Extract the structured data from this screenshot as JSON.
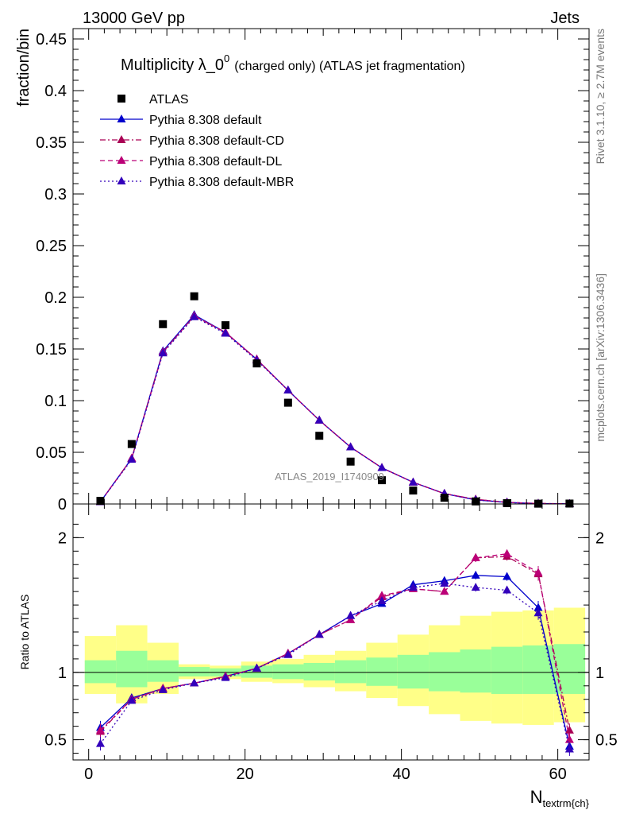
{
  "header": {
    "energy_label": "13000 GeV pp",
    "category_label": "Jets"
  },
  "side_labels": {
    "rivet": "Rivet 3.1.10, ≥ 2.7M events",
    "mcplots": "mcplots.cern.ch [arXiv:1306.3436]"
  },
  "colors": {
    "data": "#000000",
    "default": "#0000cc",
    "default_cd": "#aa0055",
    "default_dl": "#bb0077",
    "default_mbr": "#3300bb",
    "band_inner": "#99ff99",
    "band_outer": "#ffff88"
  },
  "chart_data": [
    {
      "type": "scatter",
      "title": "Multiplicity λ_0",
      "title_sup": "0",
      "title_suffix": "(charged only) (ATLAS jet fragmentation)",
      "ylabel": "fraction/bin",
      "xlabel": "",
      "watermark": "ATLAS_2019_I1740909",
      "xlim": [
        -2,
        64
      ],
      "ylim": [
        0,
        0.46
      ],
      "yticks": [
        0,
        0.05,
        0.1,
        0.15,
        0.2,
        0.25,
        0.3,
        0.35,
        0.4,
        0.45
      ],
      "ytick_labels": [
        "0",
        "0.05",
        "0.1",
        "0.15",
        "0.2",
        "0.25",
        "0.3",
        "0.35",
        "0.4",
        "0.45"
      ],
      "legend_position": "top-left",
      "x": [
        1.5,
        5.5,
        9.5,
        13.5,
        17.5,
        21.5,
        25.5,
        29.5,
        33.5,
        37.5,
        41.5,
        45.5,
        49.5,
        53.5,
        57.5,
        61.5
      ],
      "series": [
        {
          "name": "ATLAS",
          "marker": "square",
          "values": [
            0.003,
            0.058,
            0.174,
            0.201,
            0.173,
            0.136,
            0.098,
            0.066,
            0.041,
            0.023,
            0.013,
            0.006,
            0.0025,
            0.0008,
            0.0003,
            0.0004
          ]
        },
        {
          "name": "Pythia 8.308 default",
          "marker": "triangle",
          "line": "solid",
          "values": [
            0.002,
            0.044,
            0.148,
            0.183,
            0.166,
            0.14,
            0.11,
            0.081,
            0.055,
            0.035,
            0.021,
            0.01,
            0.004,
            0.0015,
            0.0004,
            0.0002
          ]
        },
        {
          "name": "Pythia 8.308 default-CD",
          "marker": "triangle",
          "line": "dashdot",
          "values": [
            0.002,
            0.044,
            0.147,
            0.182,
            0.166,
            0.14,
            0.11,
            0.081,
            0.055,
            0.035,
            0.021,
            0.01,
            0.0045,
            0.0016,
            0.0005,
            0.0002
          ]
        },
        {
          "name": "Pythia 8.308 default-DL",
          "marker": "triangle",
          "line": "dashed",
          "values": [
            0.002,
            0.044,
            0.147,
            0.182,
            0.166,
            0.14,
            0.11,
            0.081,
            0.055,
            0.035,
            0.021,
            0.01,
            0.0045,
            0.0016,
            0.0005,
            0.0002
          ]
        },
        {
          "name": "Pythia 8.308 default-MBR",
          "marker": "triangle",
          "line": "dotted",
          "values": [
            0.002,
            0.043,
            0.146,
            0.181,
            0.165,
            0.139,
            0.11,
            0.081,
            0.055,
            0.035,
            0.021,
            0.01,
            0.004,
            0.0014,
            0.0004,
            0.0002
          ]
        }
      ]
    },
    {
      "type": "scatter",
      "title": "",
      "ylabel": "Ratio to ATLAS",
      "xlabel": "N",
      "xlabel_sub": "textrm{ch}",
      "xlim": [
        -2,
        64
      ],
      "ylim": [
        0.35,
        2.25
      ],
      "xticks": [
        0,
        20,
        40,
        60
      ],
      "xtick_labels": [
        "0",
        "20",
        "40",
        "60"
      ],
      "yticks": [
        0.5,
        1,
        2
      ],
      "ytick_labels": [
        "0.5",
        "1",
        "2"
      ],
      "reference_line": 1,
      "bins": [
        [
          -0.5,
          3.5
        ],
        [
          3.5,
          7.5
        ],
        [
          7.5,
          11.5
        ],
        [
          11.5,
          15.5
        ],
        [
          15.5,
          19.5
        ],
        [
          19.5,
          23.5
        ],
        [
          23.5,
          27.5
        ],
        [
          27.5,
          31.5
        ],
        [
          31.5,
          35.5
        ],
        [
          35.5,
          39.5
        ],
        [
          39.5,
          43.5
        ],
        [
          43.5,
          47.5
        ],
        [
          47.5,
          51.5
        ],
        [
          51.5,
          55.5
        ],
        [
          55.5,
          59.5
        ],
        [
          59.5,
          63.5
        ]
      ],
      "band_inner": [
        [
          0.92,
          1.09
        ],
        [
          0.89,
          1.16
        ],
        [
          0.93,
          1.09
        ],
        [
          0.97,
          1.04
        ],
        [
          0.97,
          1.03
        ],
        [
          0.96,
          1.05
        ],
        [
          0.95,
          1.06
        ],
        [
          0.94,
          1.07
        ],
        [
          0.92,
          1.09
        ],
        [
          0.9,
          1.11
        ],
        [
          0.88,
          1.13
        ],
        [
          0.86,
          1.15
        ],
        [
          0.85,
          1.17
        ],
        [
          0.84,
          1.19
        ],
        [
          0.84,
          1.2
        ],
        [
          0.84,
          1.21
        ]
      ],
      "band_outer": [
        [
          0.84,
          1.27
        ],
        [
          0.77,
          1.35
        ],
        [
          0.84,
          1.22
        ],
        [
          0.95,
          1.06
        ],
        [
          0.95,
          1.05
        ],
        [
          0.93,
          1.08
        ],
        [
          0.92,
          1.1
        ],
        [
          0.89,
          1.13
        ],
        [
          0.86,
          1.16
        ],
        [
          0.81,
          1.22
        ],
        [
          0.75,
          1.28
        ],
        [
          0.69,
          1.35
        ],
        [
          0.64,
          1.42
        ],
        [
          0.62,
          1.45
        ],
        [
          0.61,
          1.46
        ],
        [
          0.63,
          1.48
        ]
      ],
      "x": [
        1.5,
        5.5,
        9.5,
        13.5,
        17.5,
        21.5,
        25.5,
        29.5,
        33.5,
        37.5,
        41.5,
        45.5,
        49.5,
        53.5,
        57.5,
        61.5
      ],
      "series": [
        {
          "name": "Pythia 8.308 default",
          "values": [
            0.59,
            0.81,
            0.88,
            0.92,
            0.97,
            1.03,
            1.14,
            1.28,
            1.42,
            1.51,
            1.65,
            1.68,
            1.72,
            1.71,
            1.48,
            0.45
          ]
        },
        {
          "name": "Pythia 8.308 default-CD",
          "values": [
            0.56,
            0.8,
            0.88,
            0.92,
            0.97,
            1.03,
            1.14,
            1.28,
            1.39,
            1.56,
            1.62,
            1.6,
            1.85,
            1.86,
            1.73,
            0.57
          ]
        },
        {
          "name": "Pythia 8.308 default-DL",
          "values": [
            0.57,
            0.8,
            0.88,
            0.92,
            0.97,
            1.03,
            1.14,
            1.28,
            1.39,
            1.57,
            1.62,
            1.6,
            1.85,
            1.88,
            1.74,
            0.5
          ]
        },
        {
          "name": "Pythia 8.308 default-MBR",
          "values": [
            0.47,
            0.79,
            0.87,
            0.92,
            0.96,
            1.03,
            1.13,
            1.28,
            1.42,
            1.53,
            1.63,
            1.66,
            1.63,
            1.61,
            1.44,
            0.43
          ]
        }
      ]
    }
  ]
}
